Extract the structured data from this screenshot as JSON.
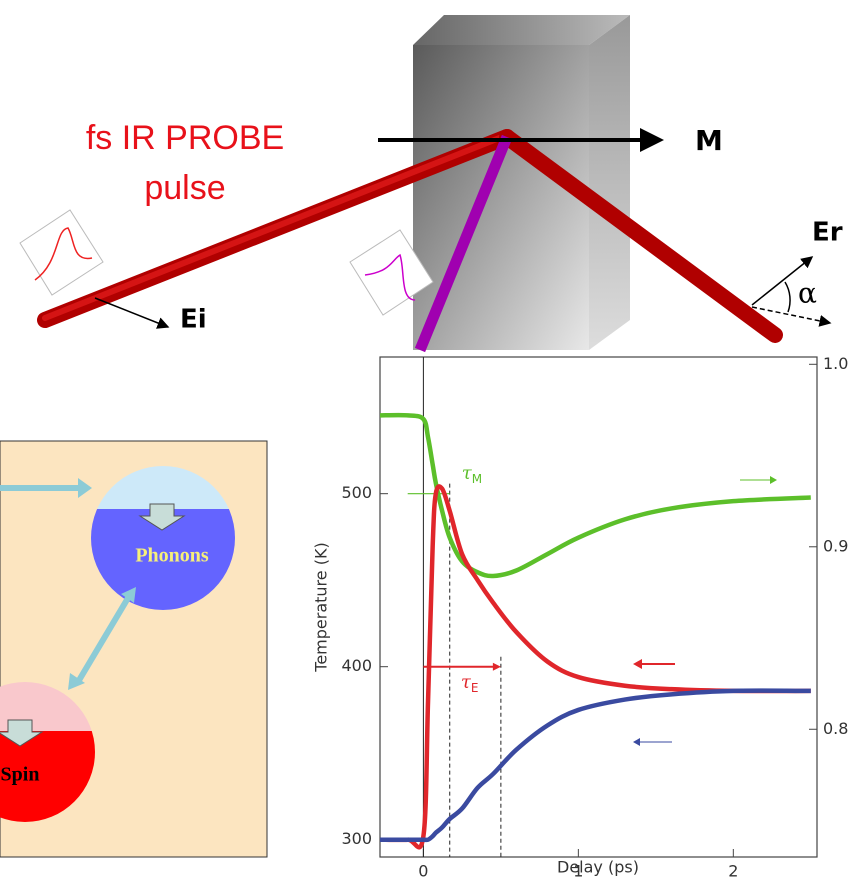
{
  "diagram": {
    "probe_label": [
      "fs IR PROBE",
      "pulse"
    ],
    "magnetization": "M",
    "incident_field": "Ei",
    "reflected_field": "Er",
    "angle": "α"
  },
  "reservoirs": {
    "phonons": "Phonons",
    "spin": "Spin"
  },
  "chart_data": {
    "type": "line",
    "x_label": "Delay (ps)",
    "y_label": "Temperature (K)",
    "x": [
      -0.28,
      -0.1,
      0,
      0.03,
      0.06,
      0.08,
      0.12,
      0.17,
      0.25,
      0.35,
      0.45,
      0.6,
      0.8,
      1.0,
      1.3,
      1.6,
      2.0,
      2.5
    ],
    "series": [
      {
        "color": "#5cbf2a",
        "axis": "y2",
        "values": [
          0.972,
          0.972,
          0.97,
          0.96,
          0.945,
          0.935,
          0.92,
          0.905,
          0.892,
          0.886,
          0.884,
          0.887,
          0.896,
          0.905,
          0.915,
          0.921,
          0.925,
          0.927
        ]
      },
      {
        "color": "#e0262b",
        "values": [
          300,
          300,
          302,
          380,
          470,
          500,
          503,
          490,
          465,
          450,
          437,
          420,
          403,
          394,
          389,
          387,
          386,
          386
        ]
      },
      {
        "color": "#3a4aa0",
        "values": [
          300,
          300,
          300,
          300,
          302,
          304,
          307,
          312,
          318,
          330,
          338,
          352,
          366,
          375,
          381,
          384,
          386,
          386
        ]
      }
    ],
    "xlim": [
      -0.28,
      2.54
    ],
    "xticks": [
      0,
      1,
      2
    ],
    "ylim": [
      290,
      579
    ],
    "yticks": [
      300,
      400,
      500
    ],
    "y2lim": [
      0.73,
      1.004
    ],
    "y2ticks": [
      0.8,
      0.9,
      {
        "value": 1.0,
        "label": "1.0"
      }
    ],
    "annotations": [
      {
        "symbol": "τ",
        "sub": "M",
        "color": "#5cbf2a",
        "x": 0.17,
        "y": 500,
        "from": 0.06
      },
      {
        "symbol": "τ",
        "sub": "E",
        "color": "#e0262b",
        "x": 0.5,
        "y": 400,
        "from": 0
      }
    ]
  }
}
